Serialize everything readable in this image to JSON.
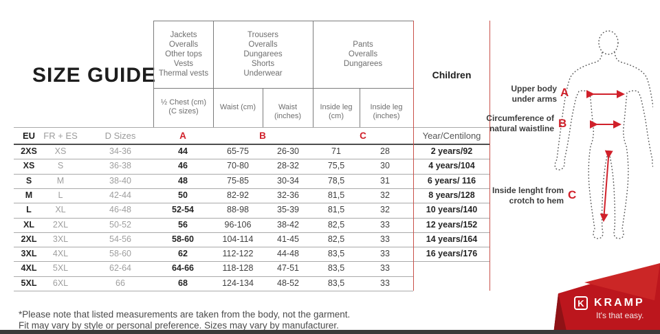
{
  "title": "SIZE GUIDE",
  "table": {
    "groups": {
      "tops_label_lines": [
        "Jackets",
        "Overalls",
        "Other tops",
        "Vests",
        "Thermal vests"
      ],
      "tops_sub_lines": [
        "½ Chest (cm)",
        "(C sizes)"
      ],
      "waist_label_lines": [
        "Trousers",
        "Overalls",
        "Dungarees",
        "Shorts",
        "Underwear"
      ],
      "waist_sub_cm": "Waist (cm)",
      "waist_sub_in": "Waist (inches)",
      "legs_label_lines": [
        "Pants",
        "Overalls",
        "Dungarees"
      ],
      "legs_sub_cm": "Inside leg (cm)",
      "legs_sub_in": "Inside leg (inches)",
      "children_label": "Children"
    },
    "header": {
      "eu": "EU",
      "fr_es": "FR + ES",
      "d_sizes": "D Sizes",
      "a": "A",
      "b": "B",
      "c": "C",
      "year": "Year/Centilong"
    },
    "rows": [
      {
        "eu": "2XS",
        "fr_es": "XS",
        "d_sizes": "34-36",
        "chest": "44",
        "waist_cm": "65-75",
        "waist_in": "26-30",
        "leg_cm": "71",
        "leg_in": "28",
        "children": "2 years/92"
      },
      {
        "eu": "XS",
        "fr_es": "S",
        "d_sizes": "36-38",
        "chest": "46",
        "waist_cm": "70-80",
        "waist_in": "28-32",
        "leg_cm": "75,5",
        "leg_in": "30",
        "children": "4 years/104"
      },
      {
        "eu": "S",
        "fr_es": "M",
        "d_sizes": "38-40",
        "chest": "48",
        "waist_cm": "75-85",
        "waist_in": "30-34",
        "leg_cm": "78,5",
        "leg_in": "31",
        "children": "6 years/ 116"
      },
      {
        "eu": "M",
        "fr_es": "L",
        "d_sizes": "42-44",
        "chest": "50",
        "waist_cm": "82-92",
        "waist_in": "32-36",
        "leg_cm": "81,5",
        "leg_in": "32",
        "children": "8 years/128"
      },
      {
        "eu": "L",
        "fr_es": "XL",
        "d_sizes": "46-48",
        "chest": "52-54",
        "waist_cm": "88-98",
        "waist_in": "35-39",
        "leg_cm": "81,5",
        "leg_in": "32",
        "children": "10 years/140"
      },
      {
        "eu": "XL",
        "fr_es": "2XL",
        "d_sizes": "50-52",
        "chest": "56",
        "waist_cm": "96-106",
        "waist_in": "38-42",
        "leg_cm": "82,5",
        "leg_in": "33",
        "children": "12 years/152"
      },
      {
        "eu": "2XL",
        "fr_es": "3XL",
        "d_sizes": "54-56",
        "chest": "58-60",
        "waist_cm": "104-114",
        "waist_in": "41-45",
        "leg_cm": "82,5",
        "leg_in": "33",
        "children": "14 years/164"
      },
      {
        "eu": "3XL",
        "fr_es": "4XL",
        "d_sizes": "58-60",
        "chest": "62",
        "waist_cm": "112-122",
        "waist_in": "44-48",
        "leg_cm": "83,5",
        "leg_in": "33",
        "children": "16 years/176"
      },
      {
        "eu": "4XL",
        "fr_es": "5XL",
        "d_sizes": "62-64",
        "chest": "64-66",
        "waist_cm": "118-128",
        "waist_in": "47-51",
        "leg_cm": "83,5",
        "leg_in": "33",
        "children": ""
      },
      {
        "eu": "5XL",
        "fr_es": "6XL",
        "d_sizes": "66",
        "chest": "68",
        "waist_cm": "124-134",
        "waist_in": "48-52",
        "leg_cm": "83,5",
        "leg_in": "33",
        "children": ""
      }
    ]
  },
  "diagram": {
    "a_label_lines": [
      "Upper body",
      "under arms"
    ],
    "a_letter": "A",
    "b_label_lines": [
      "Circumference of",
      "natural waistline"
    ],
    "b_letter": "B",
    "c_label_lines": [
      "Inside lenght from",
      "crotch to hem"
    ],
    "c_letter": "C"
  },
  "footnote_lines": [
    "*Please note that listed measurements are taken from the body, not the garment.",
    "Fit may vary by style or personal preference. Sizes may vary by manufacturer."
  ],
  "brand": {
    "k": "K",
    "name": "KRAMP",
    "tagline": "It's that easy."
  },
  "colors": {
    "accent_red": "#d0202a",
    "banner_red": "#bc161d",
    "banner_red_dark": "#8f1216",
    "banner_red_light": "#cb2626",
    "children_border": "#c94f48"
  }
}
